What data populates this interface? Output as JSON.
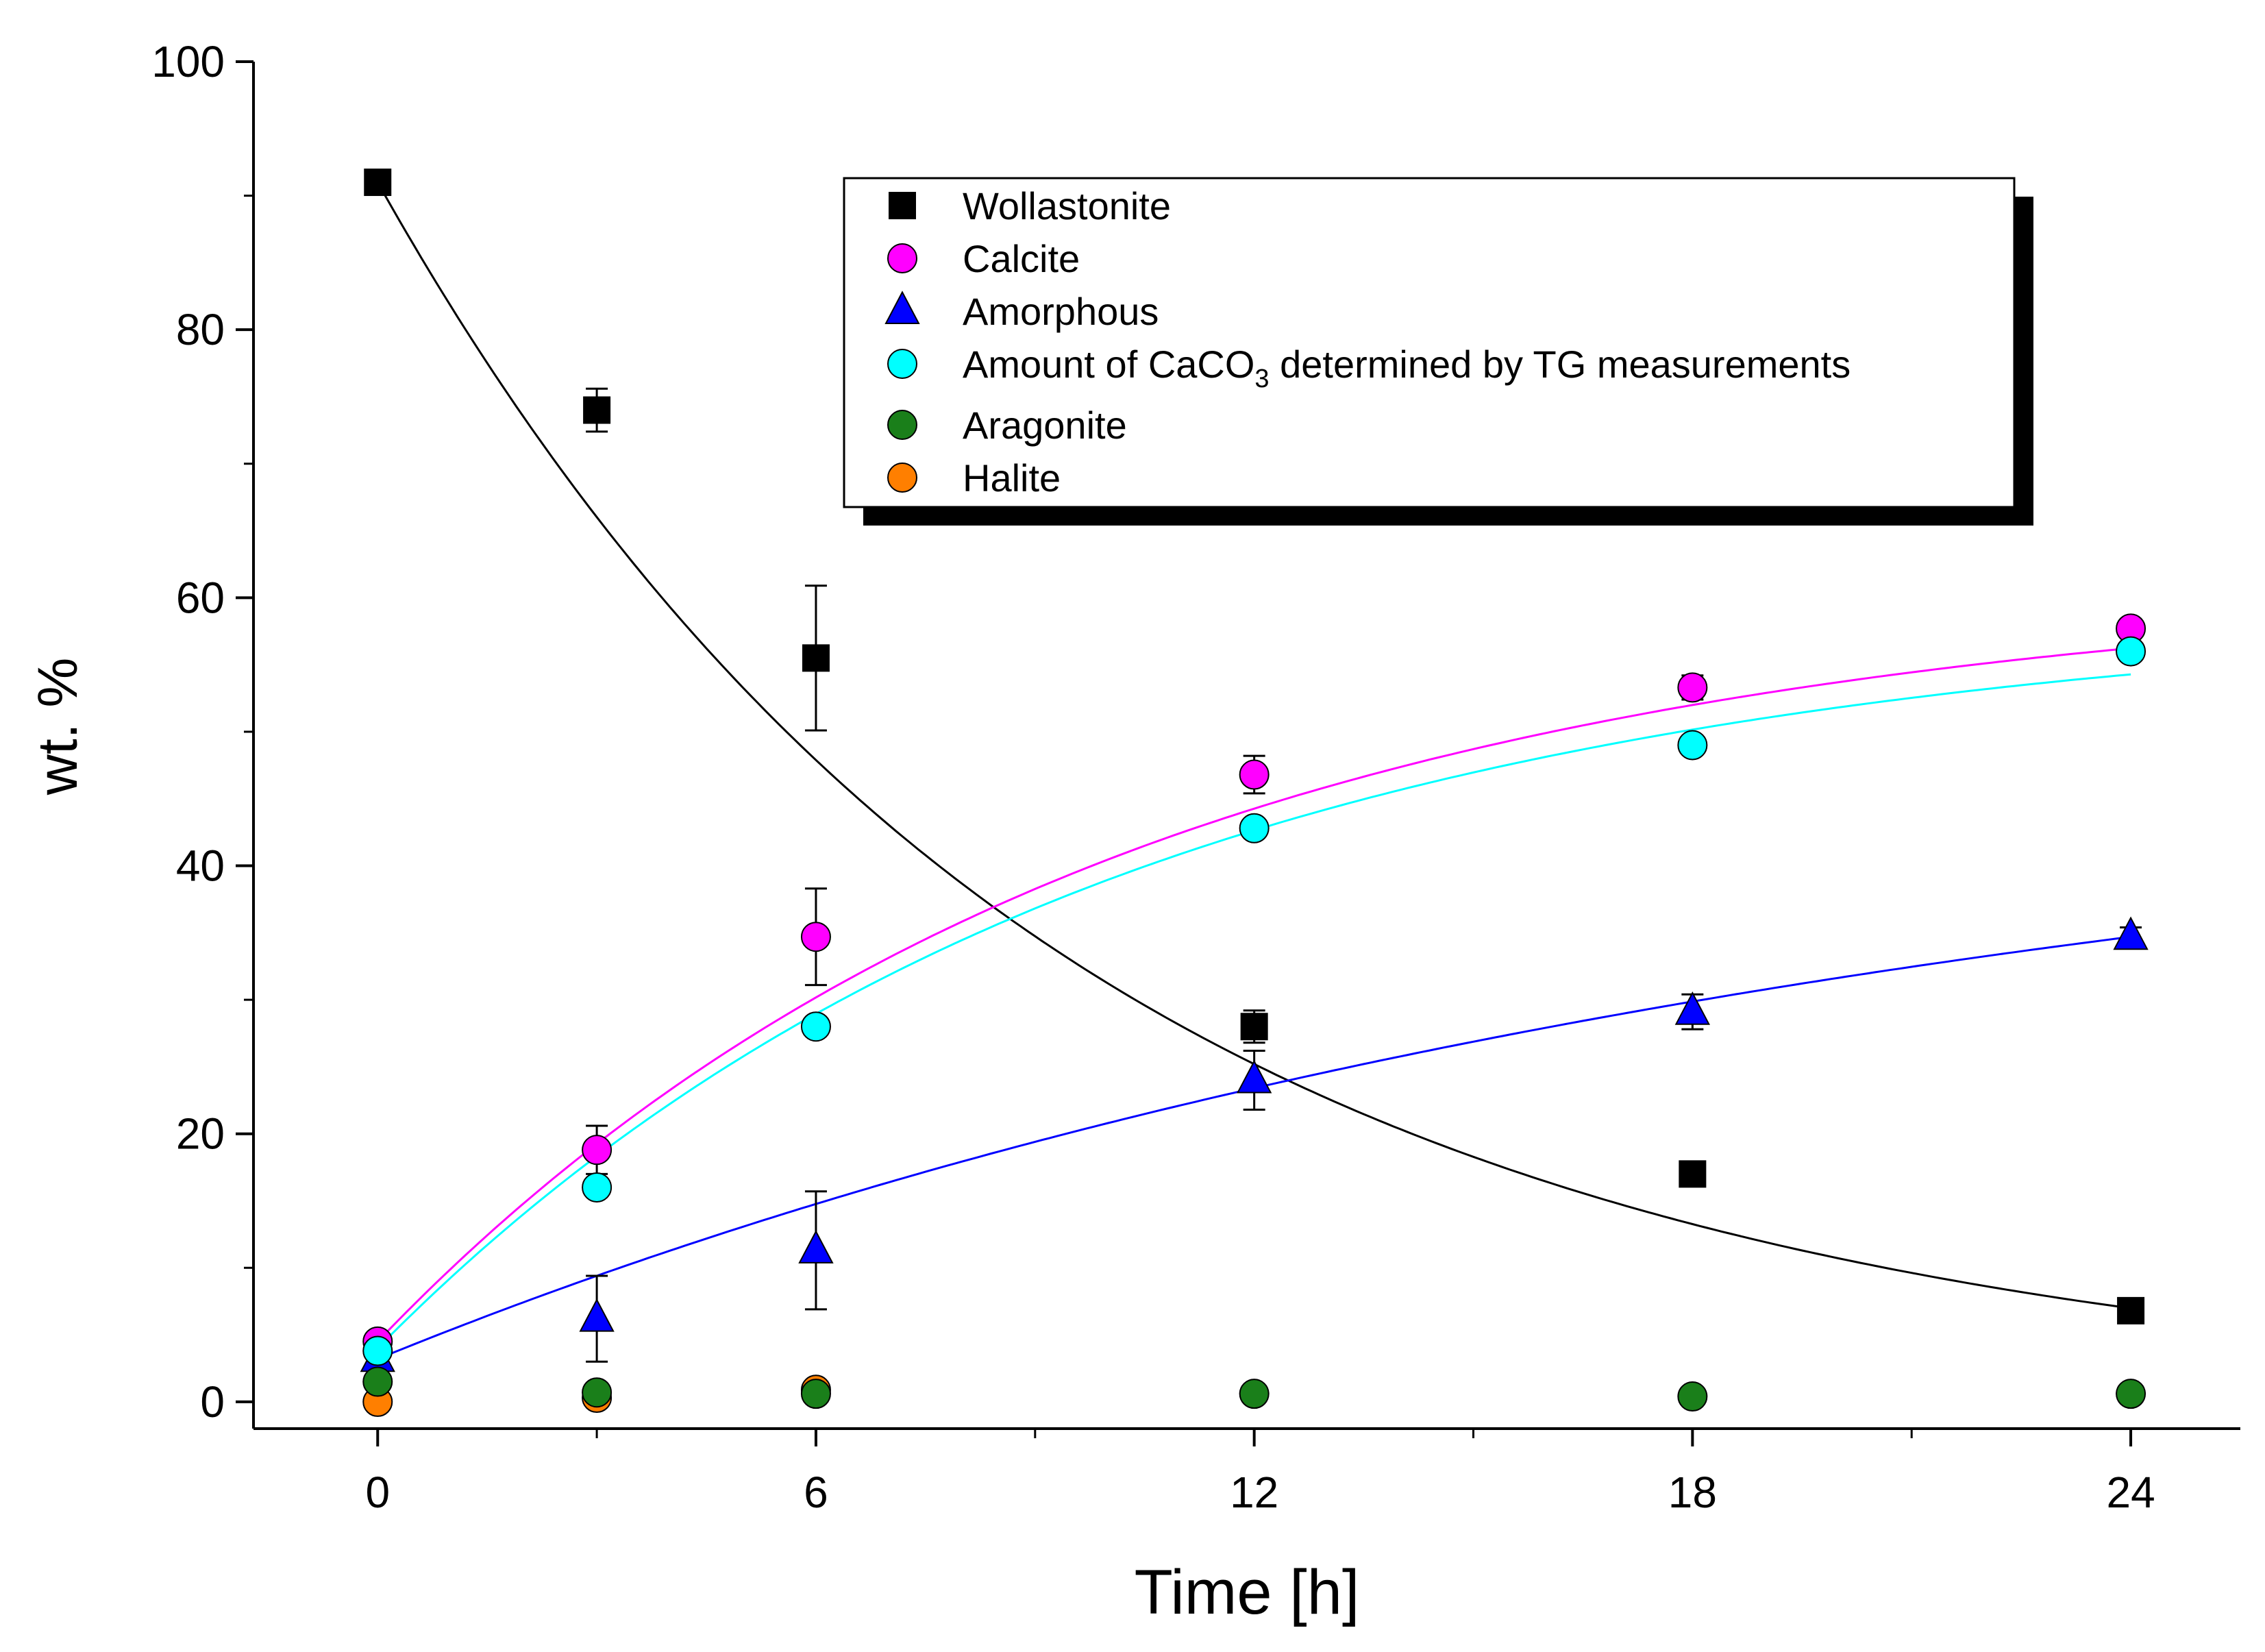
{
  "chart_data": {
    "type": "scatter",
    "xlabel": "Time [h]",
    "ylabel": "wt. %",
    "xlim": [
      -1.7,
      25.5
    ],
    "ylim": [
      -2,
      100
    ],
    "xticks": [
      0,
      6,
      12,
      18,
      24
    ],
    "xminor": [
      3,
      9,
      15,
      21
    ],
    "yticks": [
      0,
      20,
      40,
      60,
      80,
      100
    ],
    "yminor": [
      10,
      30,
      50,
      70,
      90
    ],
    "legend_position": "top-right",
    "series": [
      {
        "name": "Wollastonite",
        "marker": "square",
        "color": "#000000",
        "fit_color": "#000000",
        "x": [
          0,
          3,
          6,
          12,
          18,
          24
        ],
        "y": [
          91,
          74,
          55.5,
          28,
          17,
          6.8
        ],
        "err": [
          0,
          1.6,
          5.4,
          1.2,
          0.8,
          0.5
        ],
        "fit": {
          "a": 91,
          "b": 0,
          "k": 0.107
        }
      },
      {
        "name": "Calcite",
        "marker": "circle",
        "color": "#ff00ff",
        "fit_color": "#ff00ff",
        "x": [
          0,
          3,
          6,
          12,
          18,
          24
        ],
        "y": [
          4.5,
          18.8,
          34.7,
          46.8,
          53.3,
          57.7
        ],
        "err": [
          0.5,
          1.8,
          3.6,
          1.4,
          0.9,
          0.7
        ],
        "fit": {
          "a": -56.9,
          "b": 61.4,
          "k": 0.1
        }
      },
      {
        "name": "Amorphous",
        "marker": "triangle",
        "color": "#0000ff",
        "fit_color": "#0000ff",
        "x": [
          0,
          3,
          6,
          12,
          18,
          24
        ],
        "y": [
          3.2,
          6.2,
          11.3,
          24,
          29.1,
          34.7
        ],
        "err": [
          0.4,
          3.2,
          4.4,
          2.2,
          1.3,
          0.7
        ],
        "fit": {
          "a": -45.8,
          "b": 49,
          "k": 0.0485
        }
      },
      {
        "name": "Amount of CaCO3 determined by TG measurements",
        "marker": "circle",
        "color": "#00ffff",
        "fit_color": "#00ffff",
        "x": [
          0,
          3,
          6,
          12,
          18,
          24
        ],
        "y": [
          3.8,
          16,
          28,
          42.8,
          49,
          56
        ],
        "err": [
          0,
          0,
          0,
          0,
          0,
          0
        ],
        "fit": {
          "a": -55.3,
          "b": 59.3,
          "k": 0.1
        }
      },
      {
        "name": "Aragonite",
        "marker": "circle",
        "color": "#1a7f1a",
        "fit_color": "",
        "x": [
          0,
          3,
          6,
          12,
          18,
          24
        ],
        "y": [
          1.5,
          0.7,
          0.6,
          0.6,
          0.4,
          0.6
        ],
        "err": [
          0,
          0,
          0,
          0,
          0,
          0
        ],
        "fit": null
      },
      {
        "name": "Halite",
        "marker": "circle",
        "color": "#ff7f00",
        "fit_color": "",
        "x": [
          0,
          3,
          6
        ],
        "y": [
          0,
          0.3,
          0.9
        ],
        "err": [
          0,
          0,
          0
        ],
        "fit": null
      }
    ]
  },
  "legend": {
    "items": [
      {
        "text": "Wollastonite"
      },
      {
        "text": "Calcite"
      },
      {
        "text": "Amorphous"
      },
      {
        "text_before": "Amount of CaCO",
        "subscript": "3",
        "text_after": " determined by TG measurements"
      },
      {
        "text": "Aragonite"
      },
      {
        "text": "Halite"
      }
    ]
  }
}
